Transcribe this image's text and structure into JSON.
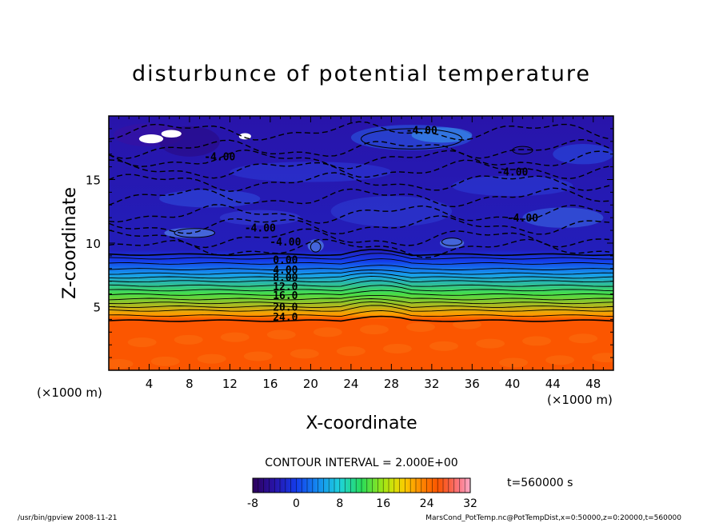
{
  "chart_data": {
    "type": "heatmap",
    "title": "disturbunce of potential temperature",
    "xlabel": "X-coordinate",
    "ylabel": "Z-coordinate",
    "x_unit_left": "(×1000 m)",
    "x_unit_right": "(×1000 m)",
    "xlim": [
      0,
      50
    ],
    "ylim": [
      0,
      20
    ],
    "x_ticks": [
      4,
      8,
      12,
      16,
      20,
      24,
      28,
      32,
      36,
      40,
      44,
      48
    ],
    "y_ticks": [
      5,
      10,
      15
    ],
    "contour_interval_text": "CONTOUR INTERVAL = 2.000E+00",
    "contour_interval": 2.0,
    "contour_labels": [
      {
        "text": "-4.00",
        "x": 31,
        "z": 18.6
      },
      {
        "text": "-4.00",
        "x": 11,
        "z": 16.5
      },
      {
        "text": "-4.00",
        "x": 40,
        "z": 15.3
      },
      {
        "text": "-4.00",
        "x": 41,
        "z": 11.7
      },
      {
        "text": "-4.00",
        "x": 15,
        "z": 10.9
      },
      {
        "text": "-4.00",
        "x": 17.5,
        "z": 9.8
      },
      {
        "text": "0.00",
        "x": 17.5,
        "z": 8.4
      },
      {
        "text": "4.00",
        "x": 17.5,
        "z": 7.6
      },
      {
        "text": "8.00",
        "x": 17.5,
        "z": 7.0
      },
      {
        "text": "12.0",
        "x": 17.5,
        "z": 6.3
      },
      {
        "text": "16.0",
        "x": 17.5,
        "z": 5.6
      },
      {
        "text": "20.0",
        "x": 17.5,
        "z": 4.7
      },
      {
        "text": "24.0",
        "x": 17.5,
        "z": 3.9
      }
    ],
    "field_profile": [
      {
        "z": 0,
        "value": 26
      },
      {
        "z": 4,
        "value": 26
      },
      {
        "z": 4.4,
        "value": 22
      },
      {
        "z": 6,
        "value": 13
      },
      {
        "z": 7.5,
        "value": 5
      },
      {
        "z": 8.6,
        "value": 0
      },
      {
        "z": 9.5,
        "value": -3
      },
      {
        "z": 20,
        "value": -4
      }
    ],
    "colorbar": {
      "min": -8,
      "max": 32,
      "ticks": [
        -8,
        0,
        8,
        16,
        24,
        32
      ]
    },
    "time_label": "t=560000 s"
  },
  "footer": {
    "left": "/usr/bin/gpview  2008-11-21",
    "right": "MarsCond_PotTemp.nc@PotTempDist,x=0:50000,z=0:20000,t=560000"
  }
}
